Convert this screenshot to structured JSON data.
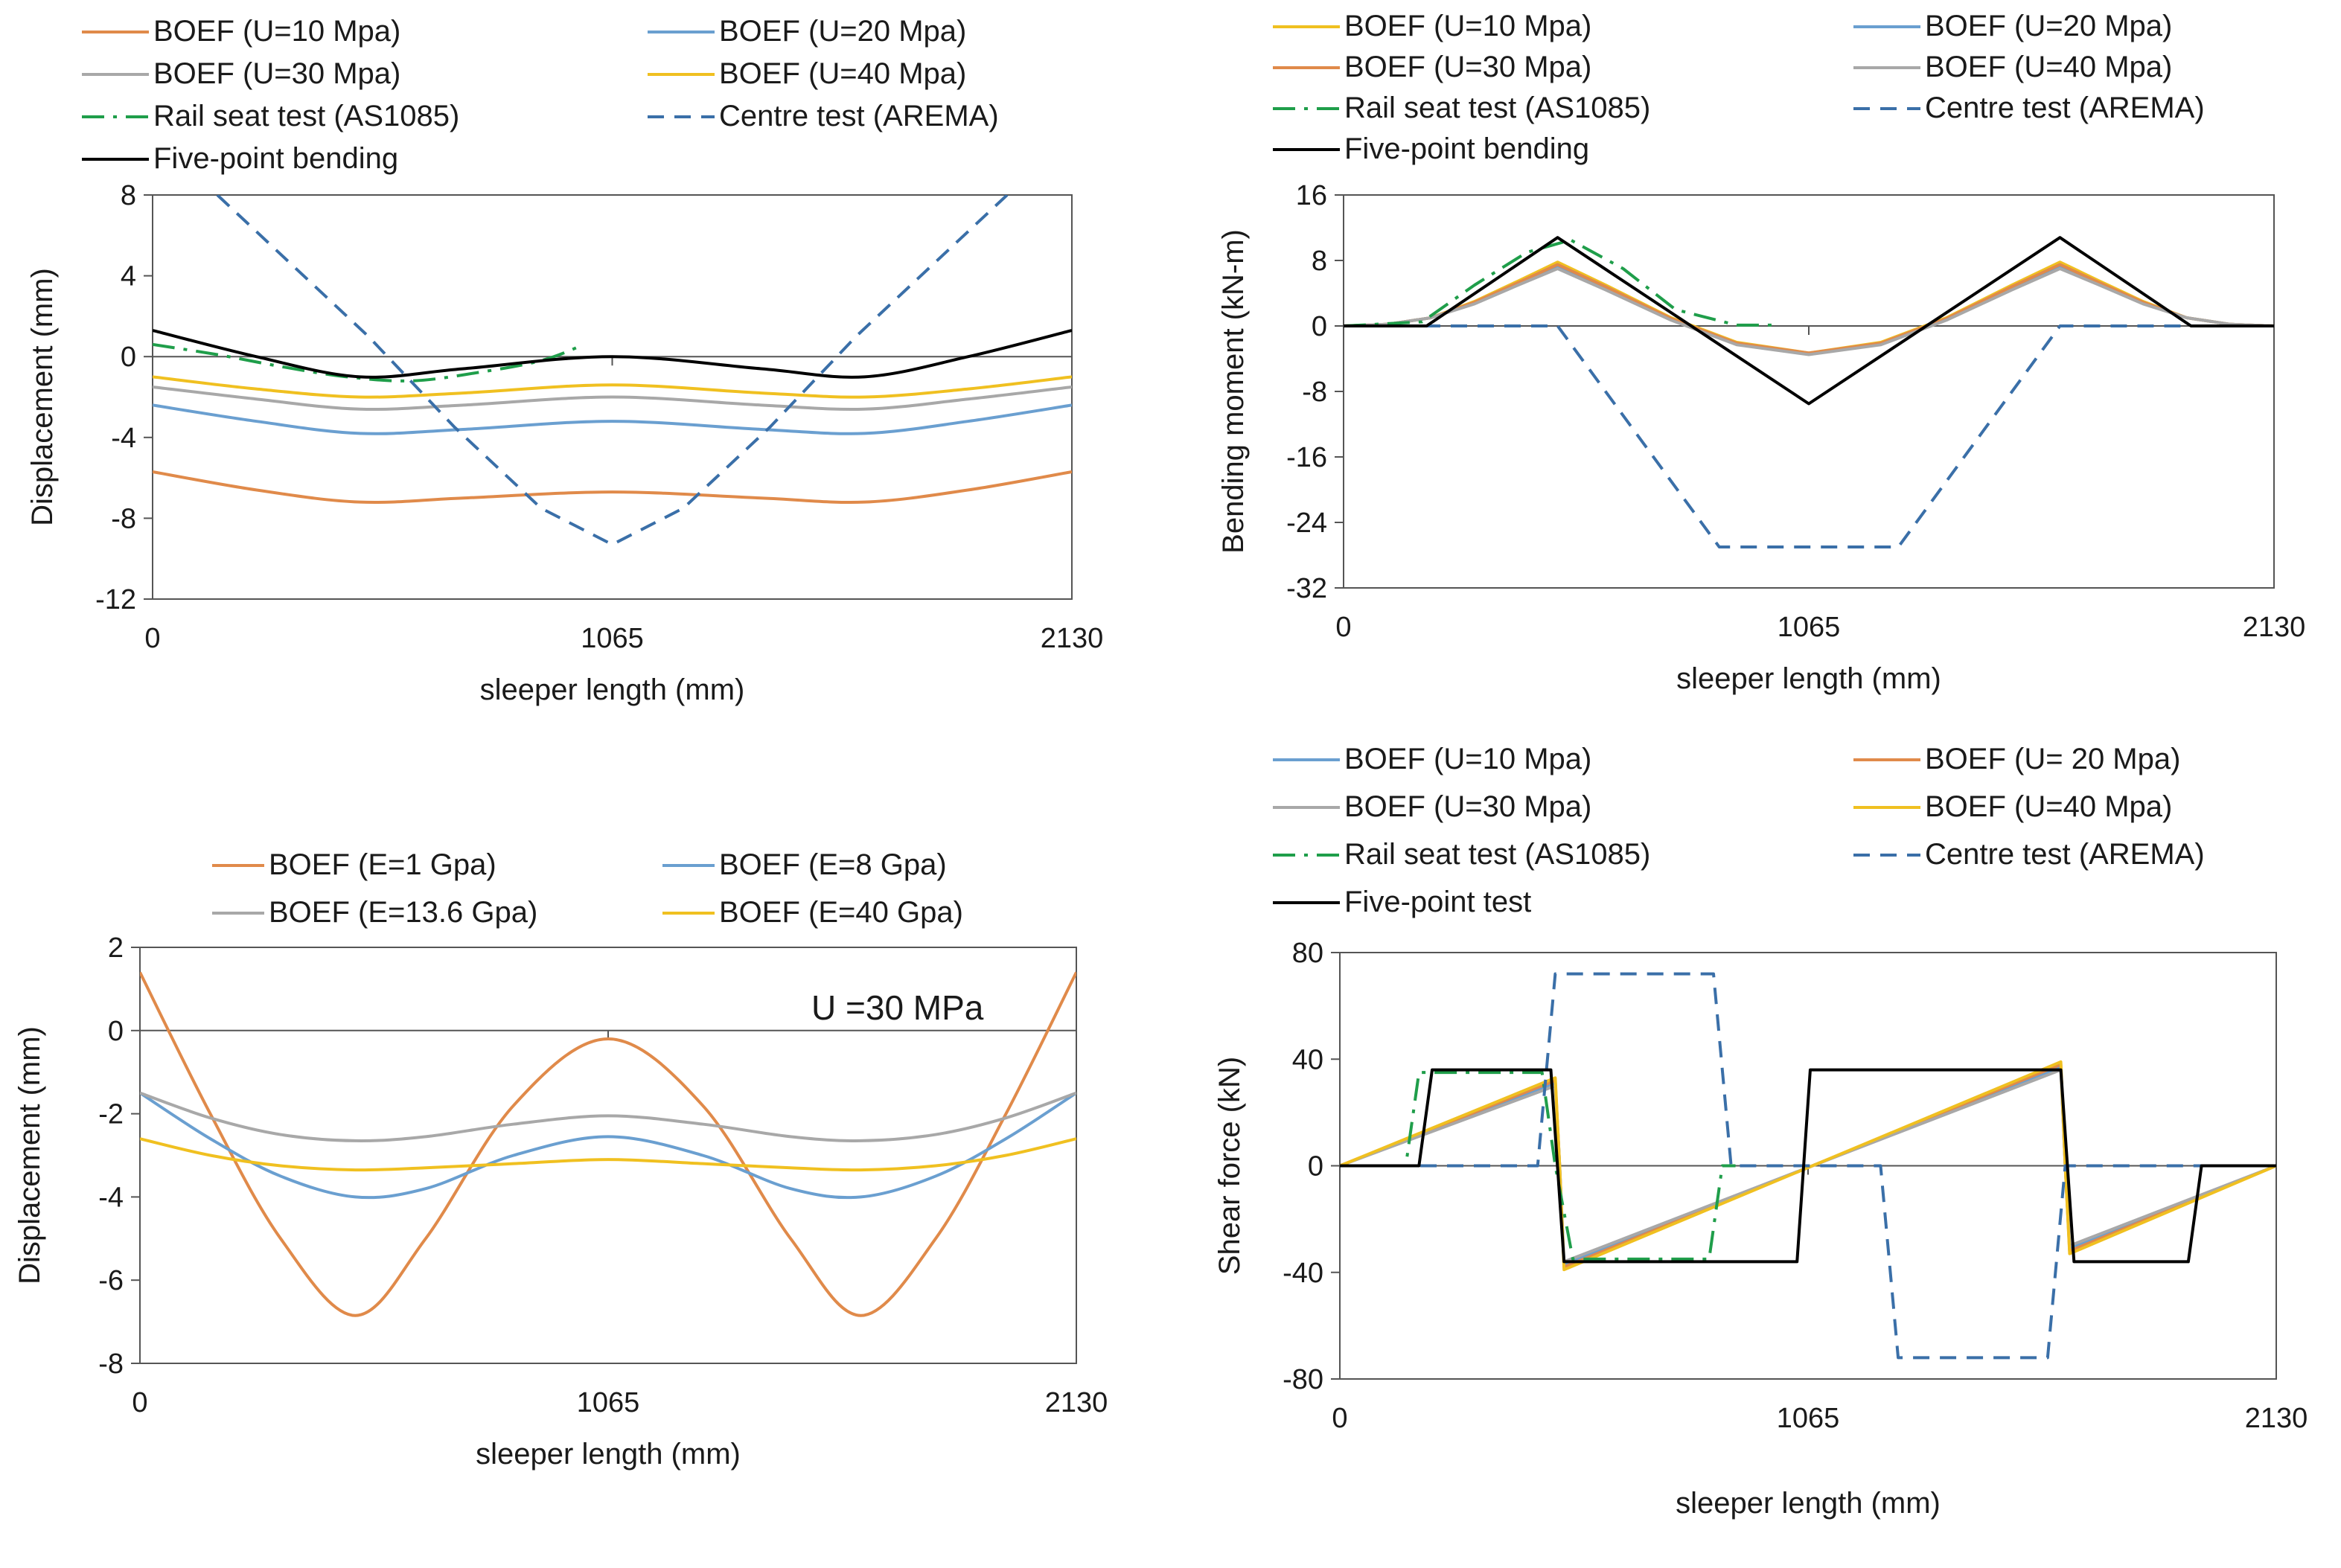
{
  "chart_data": [
    {
      "id": "tl",
      "type": "line",
      "title": "",
      "xlabel": "sleeper length (mm)",
      "ylabel": "Displacement (mm)",
      "xlim": [
        0,
        2130
      ],
      "ylim": [
        -12,
        8
      ],
      "xticks": [
        0,
        1065,
        2130
      ],
      "yticks": [
        8,
        4,
        0,
        -4,
        -8,
        -12
      ],
      "legend_position": "top",
      "series": [
        {
          "name": "BOEF (U=10 Mpa)",
          "color": "#e08a4a",
          "dash": "solid",
          "x": [
            0,
            240,
            480,
            720,
            1065,
            1410,
            1650,
            1890,
            2130
          ],
          "y": [
            -5.7,
            -6.6,
            -7.2,
            -7.0,
            -6.7,
            -7.0,
            -7.2,
            -6.6,
            -5.7
          ]
        },
        {
          "name": "BOEF (U=20 Mpa)",
          "color": "#6a9fd0",
          "dash": "solid",
          "x": [
            0,
            240,
            480,
            720,
            1065,
            1410,
            1650,
            1890,
            2130
          ],
          "y": [
            -2.4,
            -3.2,
            -3.8,
            -3.6,
            -3.2,
            -3.6,
            -3.8,
            -3.2,
            -2.4
          ]
        },
        {
          "name": "BOEF (U=30 Mpa)",
          "color": "#a8a8a8",
          "dash": "solid",
          "x": [
            0,
            240,
            480,
            720,
            1065,
            1410,
            1650,
            1890,
            2130
          ],
          "y": [
            -1.5,
            -2.1,
            -2.6,
            -2.4,
            -2.0,
            -2.4,
            -2.6,
            -2.1,
            -1.5
          ]
        },
        {
          "name": "BOEF (U=40 Mpa)",
          "color": "#f0c020",
          "dash": "solid",
          "x": [
            0,
            240,
            480,
            720,
            1065,
            1410,
            1650,
            1890,
            2130
          ],
          "y": [
            -1.0,
            -1.6,
            -2.0,
            -1.8,
            -1.4,
            -1.8,
            -2.0,
            -1.6,
            -1.0
          ]
        },
        {
          "name": "Rail seat test (AS1085)",
          "color": "#1f9e4a",
          "dash": "dashdot",
          "x": [
            0,
            150,
            300,
            450,
            600,
            750,
            900,
            1000
          ],
          "y": [
            0.6,
            0.1,
            -0.5,
            -1.0,
            -1.2,
            -0.8,
            -0.2,
            0.6
          ]
        },
        {
          "name": "Centre test (AREMA)",
          "color": "#3a6fa8",
          "dash": "dash",
          "x": [
            150,
            300,
            500,
            700,
            900,
            1065,
            1230,
            1430,
            1630,
            1830,
            1980
          ],
          "y": [
            8.0,
            5.0,
            1.0,
            -3.5,
            -7.5,
            -9.3,
            -7.5,
            -3.5,
            1.0,
            5.0,
            8.0
          ]
        },
        {
          "name": "Five-point bending",
          "color": "#000000",
          "dash": "solid",
          "x": [
            0,
            240,
            480,
            720,
            1065,
            1410,
            1650,
            1890,
            2130
          ],
          "y": [
            1.3,
            0.0,
            -1.0,
            -0.6,
            0.0,
            -0.6,
            -1.0,
            0.0,
            1.3
          ]
        }
      ]
    },
    {
      "id": "tr",
      "type": "line",
      "title": "",
      "xlabel": "sleeper length (mm)",
      "ylabel": "Bending moment (kN-m)",
      "xlim": [
        0,
        2130
      ],
      "ylim": [
        -32,
        16
      ],
      "xticks": [
        0,
        1065,
        2130
      ],
      "yticks": [
        16,
        8,
        0,
        -8,
        -16,
        -24,
        -32
      ],
      "legend_position": "top",
      "series": [
        {
          "name": "BOEF (U=10 Mpa)",
          "color": "#f0c020",
          "dash": "solid",
          "x": [
            0,
            100,
            200,
            300,
            400,
            490,
            600,
            750,
            900,
            1065,
            1230,
            1380,
            1530,
            1640,
            1730,
            1830,
            1930,
            2030,
            2130
          ],
          "y": [
            0,
            0.2,
            1.0,
            3.0,
            5.5,
            7.8,
            5.0,
            1.0,
            -2.0,
            -3.3,
            -2.0,
            1.0,
            5.0,
            7.8,
            5.5,
            3.0,
            1.0,
            0.2,
            0
          ]
        },
        {
          "name": "BOEF (U=20 Mpa)",
          "color": "#6a9fd0",
          "dash": "solid",
          "x": [
            0,
            100,
            200,
            300,
            400,
            490,
            600,
            750,
            900,
            1065,
            1230,
            1380,
            1530,
            1640,
            1730,
            1830,
            1930,
            2030,
            2130
          ],
          "y": [
            0,
            0.2,
            1.0,
            2.8,
            5.2,
            7.3,
            4.6,
            0.8,
            -2.2,
            -3.4,
            -2.2,
            0.8,
            4.6,
            7.3,
            5.2,
            2.8,
            1.0,
            0.2,
            0
          ]
        },
        {
          "name": "BOEF (U=30 Mpa)",
          "color": "#e08a4a",
          "dash": "solid",
          "x": [
            0,
            100,
            200,
            300,
            400,
            490,
            600,
            750,
            900,
            1065,
            1230,
            1380,
            1530,
            1640,
            1730,
            1830,
            1930,
            2030,
            2130
          ],
          "y": [
            0,
            0.2,
            1.0,
            2.9,
            5.3,
            7.5,
            4.8,
            0.9,
            -2.1,
            -3.3,
            -2.1,
            0.9,
            4.8,
            7.5,
            5.3,
            2.9,
            1.0,
            0.2,
            0
          ]
        },
        {
          "name": "BOEF (U=40 Mpa)",
          "color": "#a8a8a8",
          "dash": "solid",
          "x": [
            0,
            100,
            200,
            300,
            400,
            490,
            600,
            750,
            900,
            1065,
            1230,
            1380,
            1530,
            1640,
            1730,
            1830,
            1930,
            2030,
            2130
          ],
          "y": [
            0,
            0.2,
            1.0,
            2.7,
            5.0,
            7.0,
            4.4,
            0.7,
            -2.3,
            -3.5,
            -2.3,
            0.7,
            4.4,
            7.0,
            5.0,
            2.7,
            1.0,
            0.2,
            0
          ]
        },
        {
          "name": "Rail seat test (AS1085)",
          "color": "#1f9e4a",
          "dash": "dashdot",
          "x": [
            0,
            180,
            300,
            420,
            520,
            640,
            760,
            900,
            1000
          ],
          "y": [
            0,
            0.5,
            5.0,
            9.0,
            10.5,
            7.0,
            2.0,
            0.1,
            0.1
          ]
        },
        {
          "name": "Centre test (AREMA)",
          "color": "#3a6fa8",
          "dash": "dash",
          "x": [
            0,
            490,
            860,
            1270,
            1640,
            2130
          ],
          "y": [
            0,
            0,
            -27,
            -27,
            0,
            0
          ]
        },
        {
          "name": "Five-point bending",
          "color": "#000000",
          "dash": "solid",
          "x": [
            0,
            190,
            490,
            1065,
            1640,
            1940,
            2130
          ],
          "y": [
            0,
            0,
            10.8,
            -9.5,
            10.8,
            0,
            0
          ]
        }
      ]
    },
    {
      "id": "bl",
      "type": "line",
      "title": "",
      "xlabel": "sleeper length (mm)",
      "ylabel": "Displacement (mm)",
      "xlim": [
        0,
        2130
      ],
      "ylim": [
        -8,
        2
      ],
      "xticks": [
        0,
        1065,
        2130
      ],
      "yticks": [
        2,
        0,
        -2,
        -4,
        -6,
        -8
      ],
      "legend_position": "top",
      "annotation": "U =30 MPa",
      "series": [
        {
          "name": "BOEF (E=1 Gpa)",
          "color": "#e08a4a",
          "dash": "solid",
          "x": [
            0,
            160,
            320,
            490,
            650,
            850,
            1065,
            1280,
            1480,
            1640,
            1810,
            1970,
            2130
          ],
          "y": [
            1.4,
            -2.0,
            -5.0,
            -6.85,
            -5.0,
            -1.8,
            -0.2,
            -1.8,
            -5.0,
            -6.85,
            -5.0,
            -2.0,
            1.4
          ]
        },
        {
          "name": "BOEF (E=8 Gpa)",
          "color": "#6a9fd0",
          "dash": "solid",
          "x": [
            0,
            160,
            320,
            490,
            650,
            850,
            1065,
            1280,
            1480,
            1640,
            1810,
            1970,
            2130
          ],
          "y": [
            -1.5,
            -2.6,
            -3.5,
            -4.0,
            -3.8,
            -3.0,
            -2.55,
            -3.0,
            -3.8,
            -4.0,
            -3.5,
            -2.6,
            -1.5
          ]
        },
        {
          "name": "BOEF (E=13.6 Gpa)",
          "color": "#a8a8a8",
          "dash": "solid",
          "x": [
            0,
            160,
            320,
            490,
            650,
            850,
            1065,
            1280,
            1480,
            1640,
            1810,
            1970,
            2130
          ],
          "y": [
            -1.5,
            -2.1,
            -2.5,
            -2.65,
            -2.55,
            -2.25,
            -2.05,
            -2.25,
            -2.55,
            -2.65,
            -2.5,
            -2.1,
            -1.5
          ]
        },
        {
          "name": "BOEF (E=40 Gpa)",
          "color": "#f0c020",
          "dash": "solid",
          "x": [
            0,
            160,
            320,
            490,
            650,
            850,
            1065,
            1280,
            1480,
            1640,
            1810,
            1970,
            2130
          ],
          "y": [
            -2.6,
            -3.0,
            -3.25,
            -3.35,
            -3.3,
            -3.2,
            -3.1,
            -3.2,
            -3.3,
            -3.35,
            -3.25,
            -3.0,
            -2.6
          ]
        }
      ]
    },
    {
      "id": "br",
      "type": "line",
      "title": "",
      "xlabel": "sleeper length (mm)",
      "ylabel": "Shear force (kN)",
      "xlim": [
        0,
        2130
      ],
      "ylim": [
        -80,
        80
      ],
      "xticks": [
        0,
        1065,
        2130
      ],
      "yticks": [
        80,
        40,
        0,
        -40,
        -80
      ],
      "legend_position": "top",
      "series": [
        {
          "name": "BOEF (U=10 Mpa)",
          "color": "#6a9fd0",
          "dash": "solid",
          "x": [
            0,
            490,
            500,
            510,
            1640,
            1650,
            1660,
            2130
          ],
          "y": [
            0,
            31,
            0,
            -37,
            37,
            0,
            -31,
            0
          ]
        },
        {
          "name": "BOEF (U= 20 Mpa)",
          "color": "#e08a4a",
          "dash": "solid",
          "x": [
            0,
            490,
            500,
            510,
            1640,
            1650,
            1660,
            2130
          ],
          "y": [
            0,
            32,
            0,
            -38,
            38,
            0,
            -32,
            0
          ]
        },
        {
          "name": "BOEF (U=30 Mpa)",
          "color": "#a8a8a8",
          "dash": "solid",
          "x": [
            0,
            490,
            500,
            510,
            1640,
            1650,
            1660,
            2130
          ],
          "y": [
            0,
            30,
            0,
            -36,
            36,
            0,
            -30,
            0
          ]
        },
        {
          "name": "BOEF (U=40 Mpa)",
          "color": "#f0c020",
          "dash": "solid",
          "x": [
            0,
            490,
            500,
            510,
            1640,
            1650,
            1660,
            2130
          ],
          "y": [
            0,
            33,
            0,
            -39,
            39,
            0,
            -33,
            0
          ]
        },
        {
          "name": "Rail seat test (AS1085)",
          "color": "#1f9e4a",
          "dash": "dashdot",
          "x": [
            0,
            150,
            180,
            460,
            490,
            530,
            840,
            870,
            900
          ],
          "y": [
            0,
            0,
            35,
            35,
            0,
            -35,
            -35,
            0,
            0
          ]
        },
        {
          "name": "Centre test (AREMA)",
          "color": "#3a6fa8",
          "dash": "dash",
          "x": [
            0,
            450,
            490,
            850,
            890,
            1230,
            1270,
            1610,
            1650,
            2130
          ],
          "y": [
            0,
            0,
            72,
            72,
            0,
            0,
            -72,
            -72,
            0,
            0
          ]
        },
        {
          "name": "Five-point test",
          "color": "#000000",
          "dash": "solid",
          "x": [
            0,
            180,
            210,
            480,
            510,
            1040,
            1070,
            1640,
            1670,
            1930,
            1960,
            2130
          ],
          "y": [
            0,
            0,
            36,
            36,
            -36,
            -36,
            36,
            36,
            -36,
            -36,
            0,
            0
          ]
        }
      ]
    }
  ]
}
